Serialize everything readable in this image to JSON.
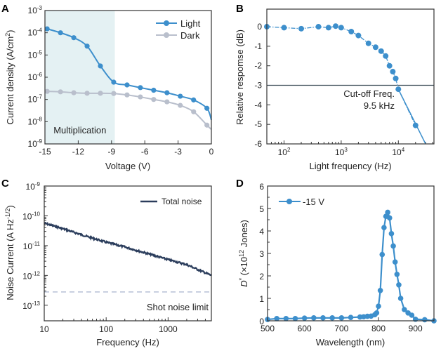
{
  "colors": {
    "light": "#3d8fcc",
    "dark": "#b9bfcc",
    "noise": "#2b3d5c",
    "shot": "#b7c1d6",
    "cutoff_line": "#3a4a55",
    "shade": "#e4f1f3"
  },
  "chart_data": [
    {
      "panel": "A",
      "type": "line",
      "xlabel": "Voltage (V)",
      "ylabel": "Current density (A/cm²)",
      "xlim": [
        -15,
        0
      ],
      "ylim": [
        1e-09,
        0.001
      ],
      "yscale": "log",
      "xticks": [
        -15,
        -12,
        -9,
        -6,
        -3,
        0
      ],
      "xtick_labels": [
        "-15",
        "-12",
        "-9",
        "-6",
        "-3",
        "0"
      ],
      "yticks_exp": [
        -3,
        -4,
        -5,
        -6,
        -7,
        -8,
        -9
      ],
      "shaded_region": {
        "x": [
          -15,
          -8.7
        ],
        "label": "Multiplication"
      },
      "legend": {
        "placement": "top-right",
        "entries": [
          "Light",
          "Dark"
        ]
      },
      "series": [
        {
          "name": "Light",
          "x": [
            -14.8,
            -13.6,
            -12.4,
            -11.2,
            -10.0,
            -8.8,
            -7.6,
            -6.4,
            -5.2,
            -4.0,
            -2.8,
            -1.6,
            -0.4,
            0
          ],
          "y": [
            0.00015,
            0.0001,
            6e-05,
            2.5e-05,
            3.2e-06,
            6e-07,
            4.5e-07,
            3.4e-07,
            2.6e-07,
            2e-07,
            1.4e-07,
            9.5e-08,
            4e-08,
            1.2e-08
          ]
        },
        {
          "name": "Dark",
          "x": [
            -14.8,
            -13.6,
            -12.4,
            -11.2,
            -10.0,
            -8.8,
            -7.6,
            -6.4,
            -5.2,
            -4.0,
            -2.8,
            -1.6,
            -0.4,
            0
          ],
          "y": [
            2.3e-07,
            2.2e-07,
            2e-07,
            1.9e-07,
            1.9e-07,
            1.85e-07,
            1.6e-07,
            1.3e-07,
            1e-07,
            7.8e-08,
            5.4e-08,
            2.8e-08,
            7e-09,
            4.5e-09
          ]
        }
      ]
    },
    {
      "panel": "B",
      "type": "line",
      "xlabel": "Light frequency (Hz)",
      "ylabel": "Relative respomse (dB)",
      "xscale": "log",
      "xlim": [
        50,
        42000
      ],
      "ylim": [
        -6,
        0.9
      ],
      "yticks": [
        0,
        -1,
        -2,
        -3,
        -4,
        -5,
        -6
      ],
      "xticks_exp": [
        2,
        3,
        4
      ],
      "hline": {
        "y": -3
      },
      "annotation": [
        "Cut-off Freq.",
        "9.5 kHz"
      ],
      "series": [
        {
          "name": "Response",
          "x": [
            50,
            100,
            200,
            400,
            600,
            800,
            1000,
            1500,
            2000,
            3000,
            4000,
            5000,
            6000,
            7000,
            8000,
            9000,
            10000,
            20000
          ],
          "y": [
            0,
            -0.05,
            -0.1,
            0,
            -0.05,
            0.03,
            -0.05,
            -0.25,
            -0.45,
            -0.85,
            -1.05,
            -1.25,
            -1.5,
            -2.0,
            -2.3,
            -2.65,
            -3.2,
            -5.05
          ]
        },
        {
          "name": "Fit",
          "x": [
            10000,
            30000
          ],
          "y": [
            -3.2,
            -6.0
          ]
        }
      ]
    },
    {
      "panel": "C",
      "type": "line",
      "xlabel": "Frequency (Hz)",
      "ylabel": "Noise Current (A Hz^-1/2)",
      "xscale": "log",
      "yscale": "log",
      "xlim": [
        10,
        5000
      ],
      "ylim": [
        3e-14,
        1e-09
      ],
      "xticks": [
        10,
        100,
        1000
      ],
      "xtick_labels": [
        "10",
        "100",
        "1000"
      ],
      "yticks_exp": [
        -9,
        -10,
        -11,
        -12,
        -13
      ],
      "legend": {
        "placement": "top-right",
        "entries": [
          "Total noise"
        ]
      },
      "series": [
        {
          "name": "Total noise",
          "x": [
            10,
            20,
            50,
            100,
            200,
            500,
            1000,
            2000,
            5000
          ],
          "y": [
            5.7e-11,
            3.7e-11,
            2e-11,
            1.3e-11,
            9e-12,
            5.2e-12,
            3.4e-12,
            2.3e-12,
            1e-12
          ]
        },
        {
          "name": "Shot noise limit",
          "y_const": 2.8e-13,
          "label": "Shot noise limit"
        }
      ]
    },
    {
      "panel": "D",
      "type": "line",
      "xlabel": "Wavelength (nm)",
      "ylabel": "D* (×10^12 Jones)",
      "xlim": [
        500,
        950
      ],
      "ylim": [
        0,
        6
      ],
      "xticks": [
        500,
        600,
        700,
        800,
        900
      ],
      "yticks": [
        0,
        1,
        2,
        3,
        4,
        5,
        6
      ],
      "legend": {
        "placement": "top-left",
        "entries": [
          "-15 V"
        ]
      },
      "series": [
        {
          "name": "-15 V",
          "x": [
            500,
            525,
            550,
            575,
            600,
            625,
            650,
            675,
            700,
            725,
            750,
            760,
            770,
            780,
            790,
            795,
            800,
            805,
            810,
            815,
            820,
            825,
            830,
            835,
            840,
            845,
            850,
            855,
            860,
            870,
            880,
            890,
            900,
            925,
            950
          ],
          "y": [
            0.06,
            0.1,
            0.1,
            0.1,
            0.12,
            0.13,
            0.13,
            0.13,
            0.13,
            0.15,
            0.17,
            0.18,
            0.2,
            0.21,
            0.27,
            0.35,
            0.65,
            1.35,
            2.95,
            4.15,
            4.65,
            4.83,
            4.58,
            3.88,
            3.33,
            2.62,
            2.07,
            1.6,
            1.0,
            0.5,
            0.35,
            0.25,
            0.07,
            0.05,
            0.0
          ]
        }
      ]
    }
  ],
  "labels": {
    "A": {
      "letter": "A",
      "xlabel": "Voltage (V)",
      "ylabel_main": "Current density (A/cm",
      "ylabel_sup": "2",
      "ylabel_end": ")",
      "shade_label": "Multiplication",
      "legend_light": "Light",
      "legend_dark": "Dark"
    },
    "B": {
      "letter": "B",
      "xlabel": "Light frequency (Hz)",
      "ylabel": "Relative respomse (dB)",
      "cutoff_1": "Cut-off Freq.",
      "cutoff_2": "9.5 kHz"
    },
    "C": {
      "letter": "C",
      "xlabel": "Frequency (Hz)",
      "ylabel_main": "Noise Current (A Hz",
      "ylabel_sup": "-1/2",
      "ylabel_end": ")",
      "legend": "Total noise",
      "shot": "Shot noise limit"
    },
    "D": {
      "letter": "D",
      "xlabel": "Wavelength (nm)",
      "ylabel_d": "D",
      "ylabel_star": "*",
      "ylabel_mid": " (×10",
      "ylabel_sup": "12",
      "ylabel_end": " Jones)",
      "legend": "-15 V"
    }
  }
}
